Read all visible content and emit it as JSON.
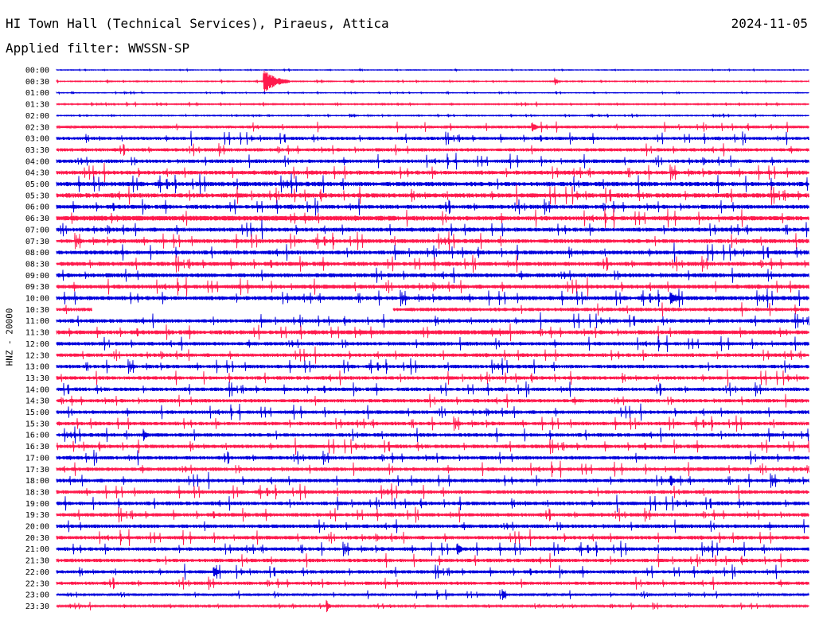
{
  "header": {
    "station": "HI Town Hall (Technical Services), Piraeus, Attica",
    "date": "2024-11-05",
    "filter": "Applied filter: WWSSN-SP"
  },
  "colors": {
    "odd_row": "#0000dd",
    "even_row": "#ff1a4d",
    "background": "#ffffff"
  },
  "chart_data": {
    "type": "line",
    "subtype": "helicorder",
    "ylabel": "HNZ - 20000",
    "row_labels": [
      "00:00",
      "00:30",
      "01:00",
      "01:30",
      "02:00",
      "02:30",
      "03:00",
      "03:30",
      "04:00",
      "04:30",
      "05:00",
      "05:30",
      "06:00",
      "06:30",
      "07:00",
      "07:30",
      "08:00",
      "08:30",
      "09:00",
      "09:30",
      "10:00",
      "10:30",
      "11:00",
      "11:30",
      "12:00",
      "12:30",
      "13:00",
      "13:30",
      "14:00",
      "14:30",
      "15:00",
      "15:30",
      "16:00",
      "16:30",
      "17:00",
      "17:30",
      "18:00",
      "18:30",
      "19:00",
      "19:30",
      "20:00",
      "20:30",
      "21:00",
      "21:30",
      "22:00",
      "22:30",
      "23:00",
      "23:30"
    ],
    "row_minutes": 30,
    "noise_level": [
      0.3,
      0.4,
      0.3,
      0.5,
      0.4,
      1.2,
      1.4,
      1.5,
      1.6,
      1.8,
      2.0,
      2.0,
      1.8,
      2.0,
      1.8,
      1.8,
      1.8,
      1.8,
      1.8,
      1.8,
      1.8,
      1.6,
      1.6,
      1.8,
      1.6,
      1.6,
      1.6,
      1.6,
      1.6,
      1.6,
      1.6,
      1.6,
      1.6,
      1.6,
      1.6,
      1.6,
      1.6,
      1.6,
      1.6,
      1.6,
      1.6,
      1.6,
      1.6,
      1.6,
      1.5,
      1.5,
      1.0,
      0.8
    ],
    "events": [
      {
        "row": "00:30",
        "minute": 8.3,
        "amplitude": 14,
        "duration_min": 1.0
      },
      {
        "row": "00:30",
        "minute": 19.9,
        "amplitude": 5,
        "duration_min": 0.2
      },
      {
        "row": "02:30",
        "minute": 19.0,
        "amplitude": 6,
        "duration_min": 0.3
      },
      {
        "row": "06:30",
        "minute": 0.0,
        "amplitude": 3,
        "duration_min": 13.5
      },
      {
        "row": "10:00",
        "minute": 24.5,
        "amplitude": 9,
        "duration_min": 0.6
      },
      {
        "row": "11:30",
        "minute": 11.0,
        "amplitude": 2.5,
        "duration_min": 7.0
      },
      {
        "row": "11:30",
        "minute": 25.0,
        "amplitude": 2.5,
        "duration_min": 4.0
      },
      {
        "row": "16:00",
        "minute": 3.5,
        "amplitude": 6,
        "duration_min": 0.3
      },
      {
        "row": "18:00",
        "minute": 24.5,
        "amplitude": 7,
        "duration_min": 0.3
      },
      {
        "row": "21:00",
        "minute": 16.0,
        "amplitude": 8,
        "duration_min": 0.3
      },
      {
        "row": "22:00",
        "minute": 6.3,
        "amplitude": 7,
        "duration_min": 0.3
      },
      {
        "row": "23:00",
        "minute": 17.8,
        "amplitude": 6,
        "duration_min": 0.3
      },
      {
        "row": "23:30",
        "minute": 10.8,
        "amplitude": 7,
        "duration_min": 0.2
      }
    ],
    "gaps": [
      {
        "row": "10:30",
        "from_minute": 1.4,
        "to_minute": 13.4
      }
    ]
  }
}
